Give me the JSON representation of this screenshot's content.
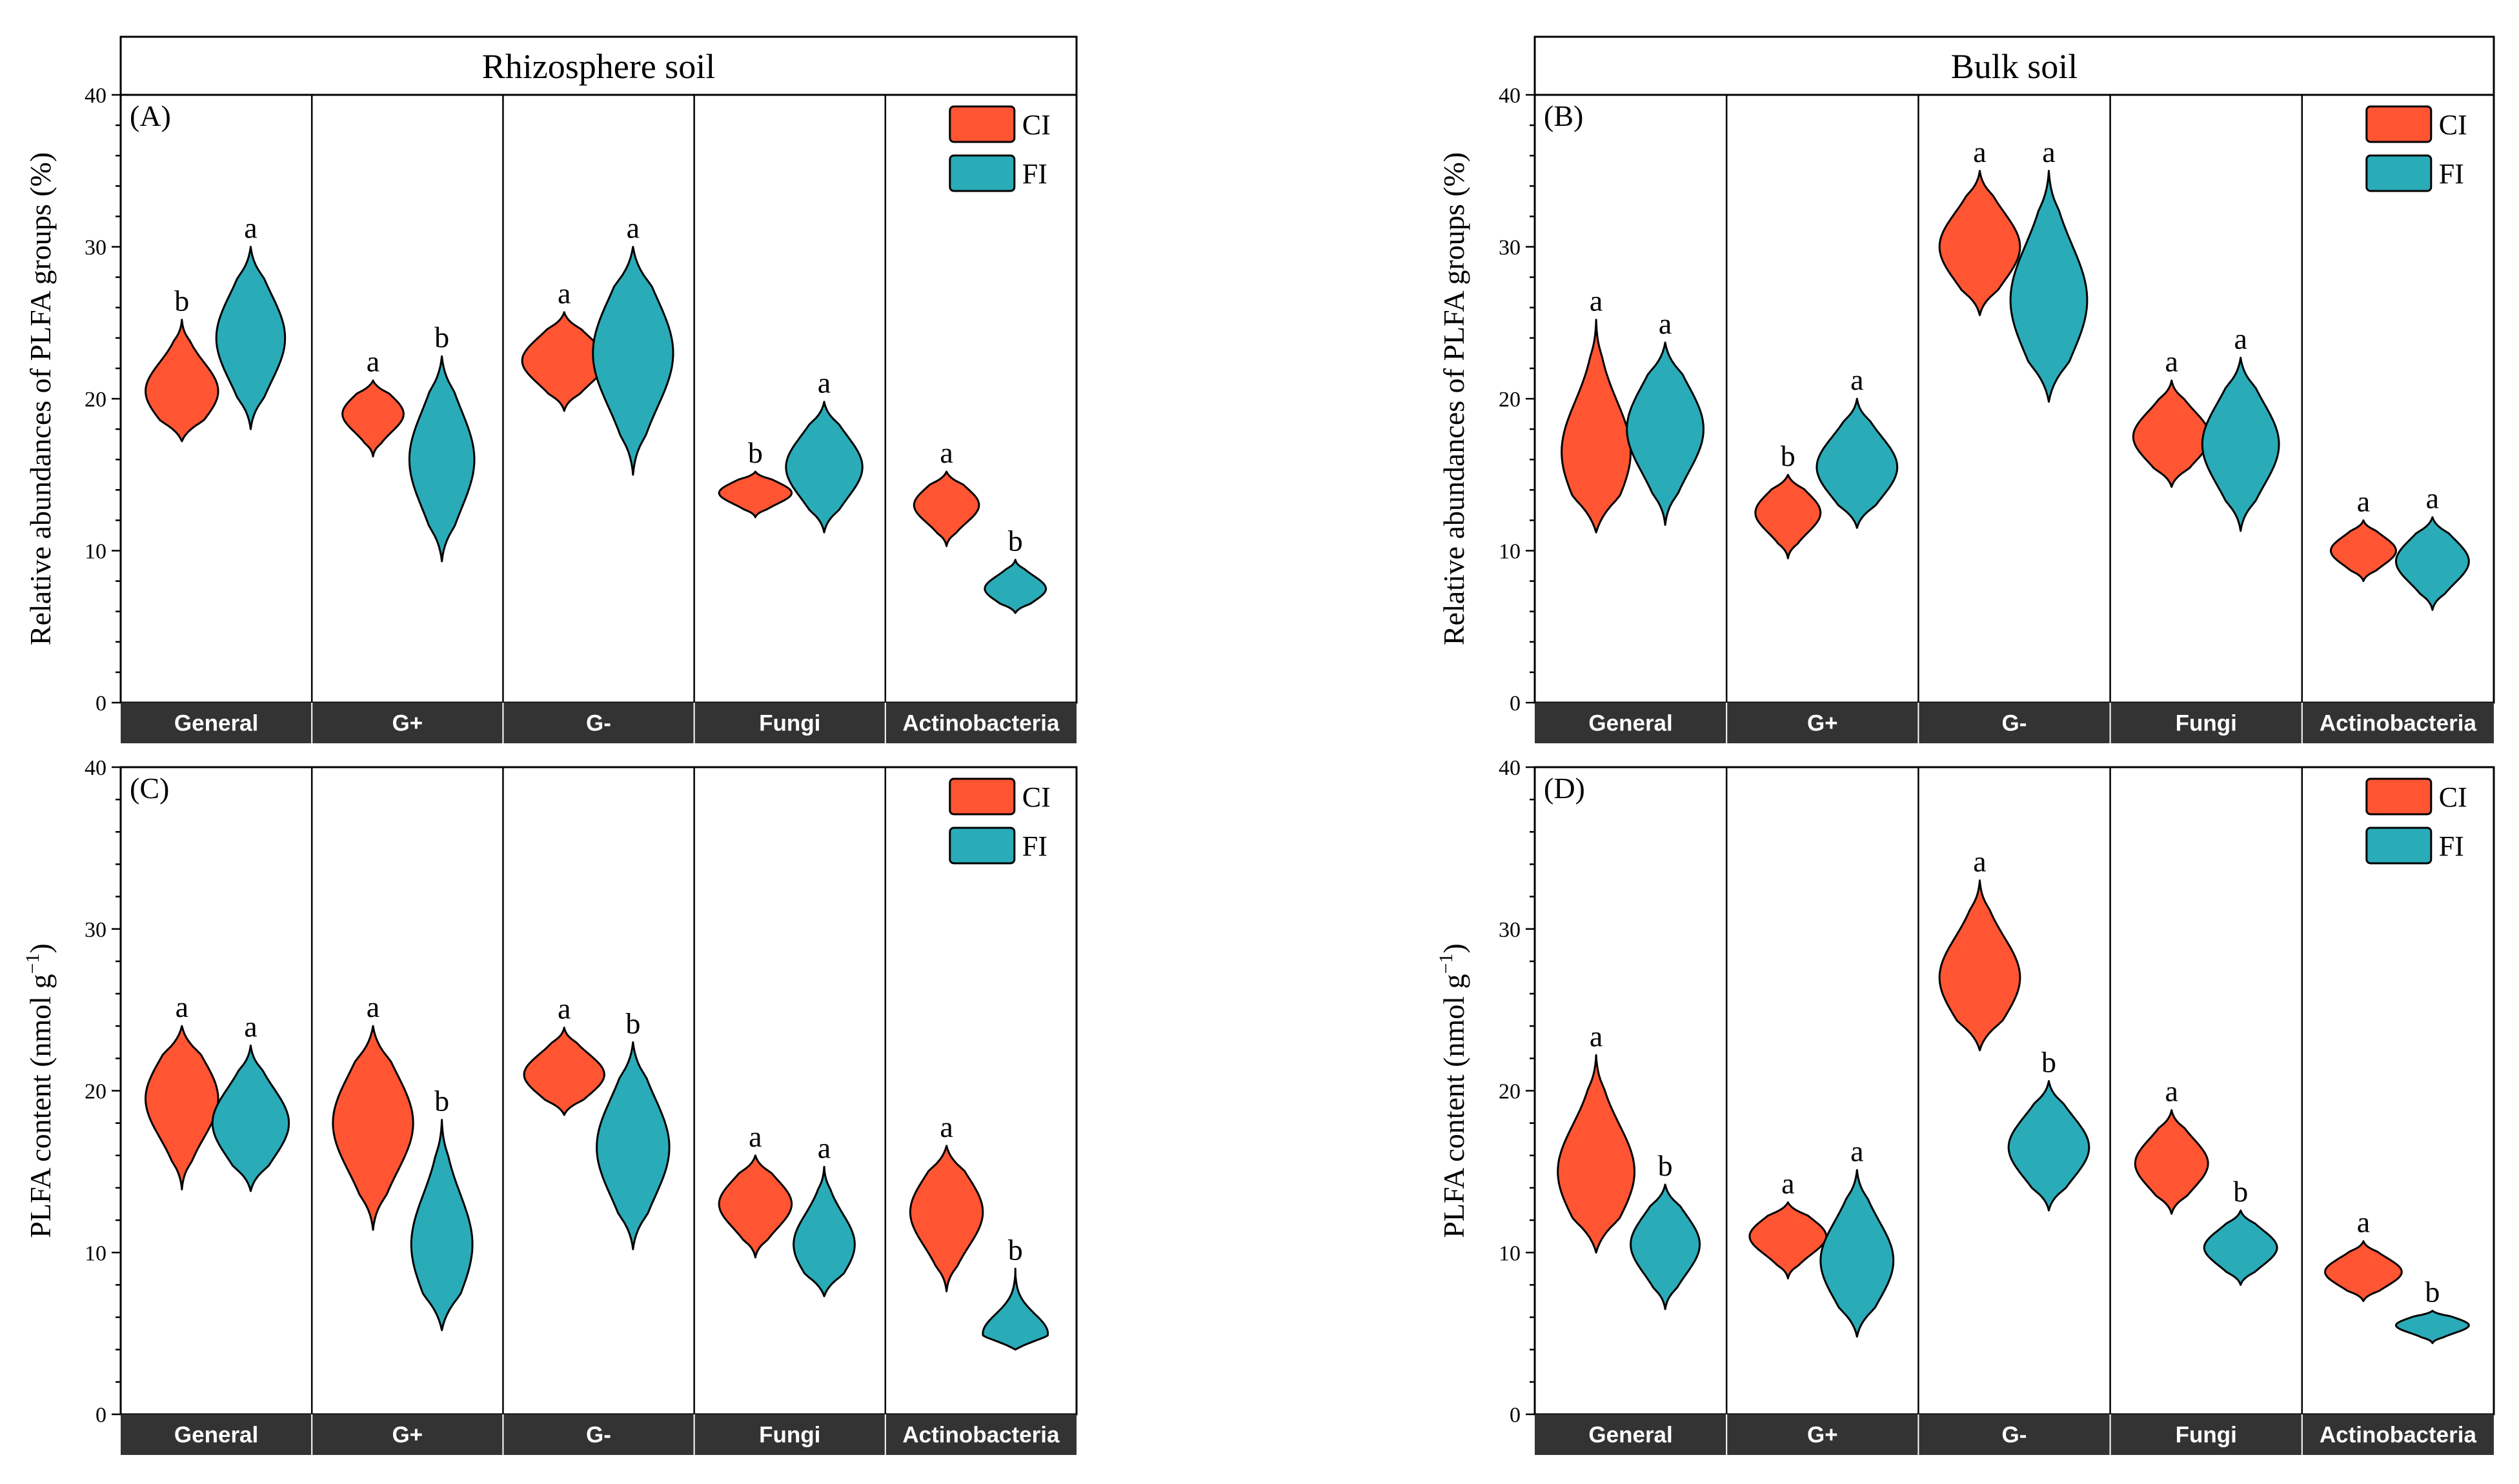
{
  "chart_data": [
    {
      "id": "A",
      "type": "violin",
      "panel_label": "(A)",
      "title": "Rhizosphere soil",
      "ylabel": "Relative abundances of PLFA groups (%)",
      "ylim": [
        0,
        40
      ],
      "yticks": [
        "0",
        "10",
        "20",
        "30",
        "40"
      ],
      "categories": [
        "General",
        "G+",
        "G-",
        "Fungi",
        "Actinobacteria"
      ],
      "legend": [
        "CI",
        "FI"
      ],
      "series": [
        {
          "name": "CI",
          "color": "#FF5533",
          "min": [
            17.2,
            16.2,
            19.2,
            12.2,
            10.3
          ],
          "max": [
            25.2,
            21.2,
            25.7,
            15.2,
            15.2
          ],
          "peak": [
            20.5,
            19.0,
            22.5,
            13.8,
            13.0
          ],
          "width": [
            0.19,
            0.16,
            0.22,
            0.19,
            0.17
          ],
          "sig": [
            "b",
            "a",
            "a",
            "b",
            "a"
          ]
        },
        {
          "name": "FI",
          "color": "#2AABB8",
          "min": [
            18.0,
            9.3,
            15.0,
            11.2,
            5.9
          ],
          "max": [
            30.0,
            22.8,
            30.0,
            19.8,
            9.4
          ],
          "peak": [
            24.0,
            16.0,
            23.0,
            15.5,
            7.5
          ],
          "width": [
            0.18,
            0.17,
            0.21,
            0.2,
            0.16
          ],
          "sig": [
            "a",
            "b",
            "a",
            "a",
            "b"
          ]
        }
      ]
    },
    {
      "id": "B",
      "type": "violin",
      "panel_label": "(B)",
      "title": "Bulk soil",
      "ylabel": "Relative abundances of PLFA groups (%)",
      "ylim": [
        0,
        40
      ],
      "yticks": [
        "0",
        "10",
        "20",
        "30",
        "40"
      ],
      "categories": [
        "General",
        "G+",
        "G-",
        "Fungi",
        "Actinobacteria"
      ],
      "legend": [
        "CI",
        "FI"
      ],
      "series": [
        {
          "name": "CI",
          "color": "#FF5533",
          "min": [
            11.2,
            9.5,
            25.5,
            14.2,
            8.0
          ],
          "max": [
            25.2,
            15.0,
            35.0,
            21.2,
            12.0
          ],
          "peak": [
            16.5,
            12.5,
            30.0,
            17.5,
            10.0
          ],
          "width": [
            0.18,
            0.17,
            0.21,
            0.2,
            0.17
          ],
          "sig": [
            "a",
            "b",
            "a",
            "a",
            "a"
          ]
        },
        {
          "name": "FI",
          "color": "#2AABB8",
          "min": [
            11.7,
            11.5,
            19.8,
            11.3,
            6.1
          ],
          "max": [
            23.7,
            20.0,
            35.0,
            22.7,
            12.2
          ],
          "peak": [
            18.0,
            15.5,
            26.5,
            17.0,
            9.3
          ],
          "width": [
            0.2,
            0.21,
            0.2,
            0.2,
            0.19
          ],
          "sig": [
            "a",
            "a",
            "a",
            "a",
            "a"
          ]
        }
      ]
    },
    {
      "id": "C",
      "type": "violin",
      "panel_label": "(C)",
      "title": "",
      "ylabel": "PLFA content (nmol g",
      "ylabel_sup": "−1",
      "ylabel_close": ")",
      "ylim": [
        0,
        40
      ],
      "yticks": [
        "0",
        "10",
        "20",
        "30",
        "40"
      ],
      "categories": [
        "General",
        "G+",
        "G-",
        "Fungi",
        "Actinobacteria"
      ],
      "legend": [
        "CI",
        "FI"
      ],
      "series": [
        {
          "name": "CI",
          "color": "#FF5533",
          "min": [
            13.9,
            11.4,
            18.5,
            9.7,
            7.6
          ],
          "max": [
            24.0,
            24.0,
            23.9,
            16.0,
            16.6
          ],
          "peak": [
            19.5,
            18.0,
            21.0,
            13.0,
            12.5
          ],
          "width": [
            0.19,
            0.21,
            0.21,
            0.19,
            0.19
          ],
          "sig": [
            "a",
            "a",
            "a",
            "a",
            "a"
          ]
        },
        {
          "name": "FI",
          "color": "#2AABB8",
          "min": [
            13.8,
            5.2,
            10.2,
            7.3,
            4.0
          ],
          "max": [
            22.8,
            18.2,
            23.0,
            15.3,
            9.0
          ],
          "peak": [
            18.0,
            10.5,
            16.5,
            10.5,
            5.0
          ],
          "width": [
            0.2,
            0.16,
            0.19,
            0.16,
            0.17
          ],
          "sig": [
            "a",
            "b",
            "b",
            "a",
            "b"
          ]
        }
      ]
    },
    {
      "id": "D",
      "type": "violin",
      "panel_label": "(D)",
      "title": "",
      "ylabel": "PLFA content (nmol g",
      "ylabel_sup": "−1",
      "ylabel_close": ")",
      "ylim": [
        0,
        40
      ],
      "yticks": [
        "10",
        "20",
        "30",
        "40"
      ],
      "extra_yticks": [
        "0"
      ],
      "categories": [
        "General",
        "G+",
        "G-",
        "Fungi",
        "Actinobacteria"
      ],
      "legend": [
        "CI",
        "FI"
      ],
      "series": [
        {
          "name": "CI",
          "color": "#FF5533",
          "min": [
            10.0,
            8.4,
            22.5,
            12.4,
            7.0
          ],
          "max": [
            22.2,
            13.1,
            33.0,
            18.8,
            10.7
          ],
          "peak": [
            15.0,
            11.0,
            27.0,
            15.5,
            8.8
          ],
          "width": [
            0.2,
            0.2,
            0.21,
            0.19,
            0.2
          ],
          "sig": [
            "a",
            "a",
            "a",
            "a",
            "a"
          ]
        },
        {
          "name": "FI",
          "color": "#2AABB8",
          "min": [
            6.5,
            4.8,
            12.6,
            8.0,
            4.4
          ],
          "max": [
            14.2,
            15.1,
            20.6,
            12.6,
            6.4
          ],
          "peak": [
            10.5,
            9.5,
            16.5,
            10.3,
            5.5
          ],
          "width": [
            0.18,
            0.19,
            0.21,
            0.19,
            0.19
          ],
          "sig": [
            "b",
            "a",
            "b",
            "b",
            "b"
          ]
        }
      ]
    }
  ]
}
